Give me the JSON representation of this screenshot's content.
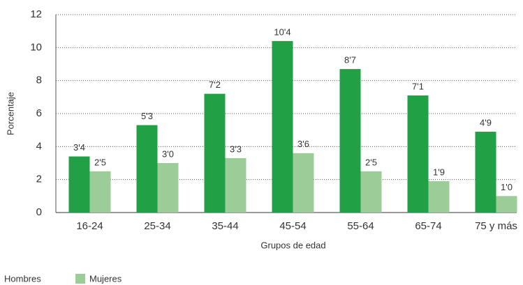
{
  "chart_data": {
    "type": "bar",
    "x_label": "Grupos de edad",
    "y_label": "Porcentaje",
    "categories": [
      "16-24",
      "25-34",
      "35-44",
      "45-54",
      "55-64",
      "65-74",
      "75 y más"
    ],
    "series": [
      {
        "name": "Hombres",
        "color": "#22a045",
        "values": [
          3.4,
          5.3,
          7.2,
          10.4,
          8.7,
          7.1,
          4.9
        ],
        "value_labels": [
          "3'4",
          "5'3",
          "7'2",
          "10'4",
          "8'7",
          "7'1",
          "4'9"
        ]
      },
      {
        "name": "Mujeres",
        "color": "#9ccc98",
        "values": [
          2.5,
          3.0,
          3.3,
          3.6,
          2.5,
          1.9,
          1.0
        ],
        "value_labels": [
          "2'5",
          "3'0",
          "3'3",
          "3'6",
          "2'5",
          "1'9",
          "1'0"
        ]
      }
    ],
    "ylim": [
      0,
      12
    ],
    "yticks": [
      0,
      2,
      4,
      6,
      8,
      10,
      12
    ],
    "grid": true,
    "legend": "bottom"
  }
}
